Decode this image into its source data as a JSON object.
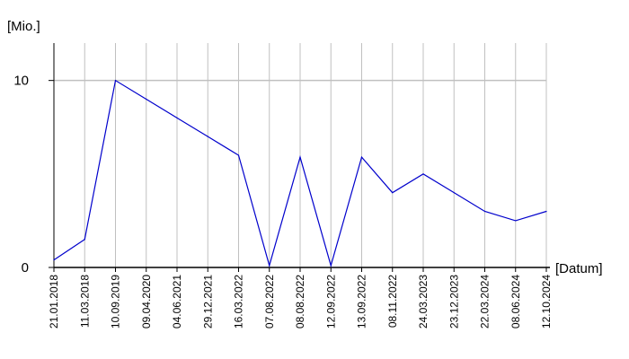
{
  "chart_data": {
    "type": "line",
    "ylabel": "[Mio.]",
    "xlabel": "[Datum]",
    "ylim": [
      0,
      12
    ],
    "yticks": [
      0,
      10
    ],
    "categories": [
      "21.01.2018",
      "11.03.2018",
      "10.09.2019",
      "09.04.2020",
      "04.06.2021",
      "29.12.2021",
      "16.03.2022",
      "07.08.2022",
      "08.08.2022",
      "12.09.2022",
      "13.09.2022",
      "08.11.2022",
      "24.03.2023",
      "23.12.2023",
      "22.03.2024",
      "08.06.2024",
      "12.10.2024"
    ],
    "series": [
      {
        "values": [
          0.4,
          1.5,
          10.0,
          9.0,
          8.0,
          7.0,
          6.0,
          0.1,
          5.9,
          0.1,
          5.9,
          4.0,
          5.0,
          4.0,
          3.0,
          2.5,
          3.0
        ],
        "color": "#0000cc"
      }
    ],
    "grid": true,
    "grid_color": "#c0c0c0"
  }
}
